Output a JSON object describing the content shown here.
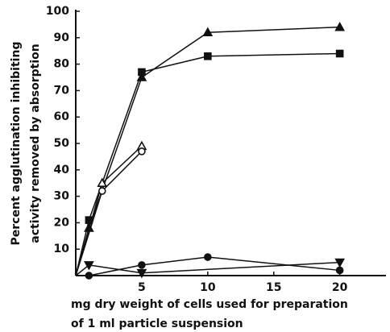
{
  "chart_data": {
    "type": "line",
    "xlabel": [
      "mg dry weight of cells used for preparation",
      "of 1 ml particle suspension"
    ],
    "ylabel": [
      "Percent agglutination inhibiting",
      "activity removed by absorption"
    ],
    "xlim": [
      0,
      23.5
    ],
    "xticks": [
      5,
      10,
      15,
      20
    ],
    "ylim": [
      0,
      100
    ],
    "yticks": [
      10,
      20,
      30,
      40,
      50,
      60,
      70,
      80,
      90,
      100
    ],
    "series": [
      {
        "marker": "triangle-up-filled",
        "color": "#111",
        "x": [
          0,
          1,
          5,
          10,
          20
        ],
        "values": [
          0,
          18,
          75,
          92,
          94
        ]
      },
      {
        "marker": "square-filled",
        "color": "#111",
        "x": [
          0,
          1,
          5,
          10,
          20
        ],
        "values": [
          0,
          21,
          77,
          83,
          84
        ]
      },
      {
        "marker": "triangle-up-open",
        "color": "#111",
        "x": [
          0,
          2,
          5
        ],
        "values": [
          0,
          35,
          49
        ]
      },
      {
        "marker": "circle-open",
        "color": "#111",
        "x": [
          0,
          2,
          5
        ],
        "values": [
          0,
          32,
          47
        ]
      },
      {
        "marker": "circle-filled",
        "color": "#111",
        "x": [
          0,
          1,
          5,
          10,
          20
        ],
        "values": [
          0,
          0,
          4,
          7,
          2
        ]
      },
      {
        "marker": "triangle-down-filled",
        "color": "#111",
        "x": [
          0,
          1,
          5,
          20
        ],
        "values": [
          0,
          4,
          1,
          5
        ]
      }
    ]
  }
}
